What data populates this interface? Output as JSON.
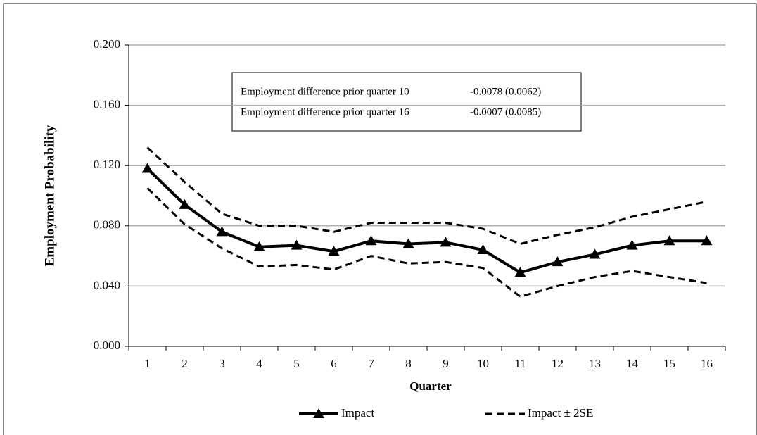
{
  "chart_data": {
    "type": "line",
    "x_label": "Quarter",
    "y_label": "Employment Probability",
    "categories": [
      "1",
      "2",
      "3",
      "4",
      "5",
      "6",
      "7",
      "8",
      "9",
      "10",
      "11",
      "12",
      "13",
      "14",
      "15",
      "16"
    ],
    "series": [
      {
        "name": "Impact",
        "color": "#000000",
        "style": "solid",
        "marker": "triangle",
        "values": [
          0.118,
          0.094,
          0.076,
          0.066,
          0.067,
          0.063,
          0.07,
          0.068,
          0.069,
          0.064,
          0.049,
          0.056,
          0.061,
          0.067,
          0.07,
          0.07
        ]
      },
      {
        "name": "Impact ± 2SE",
        "color": "#000000",
        "style": "dashed",
        "upper": [
          0.132,
          0.109,
          0.088,
          0.08,
          0.08,
          0.076,
          0.082,
          0.082,
          0.082,
          0.078,
          0.068,
          0.074,
          0.079,
          0.086,
          0.091,
          0.096
        ],
        "lower": [
          0.105,
          0.081,
          0.065,
          0.053,
          0.054,
          0.051,
          0.06,
          0.055,
          0.056,
          0.052,
          0.033,
          0.04,
          0.046,
          0.05,
          0.046,
          0.042
        ]
      }
    ],
    "ylim": [
      0,
      0.2
    ],
    "yticks": [
      {
        "value": 0,
        "label": "0.000"
      },
      {
        "value": 0.04,
        "label": "0.040"
      },
      {
        "value": 0.08,
        "label": "0.080"
      },
      {
        "value": 0.12,
        "label": "0.120"
      },
      {
        "value": 0.16,
        "label": "0.160"
      },
      {
        "value": 0.2,
        "label": "0.200"
      }
    ],
    "grid": true,
    "legend": "bottom",
    "annotations": [
      {
        "text": "Employment difference prior quarter 10",
        "value": "-0.0078 (0.0062)"
      },
      {
        "text": "Employment difference prior quarter 16",
        "value": "-0.0007 (0.0085)"
      }
    ]
  }
}
